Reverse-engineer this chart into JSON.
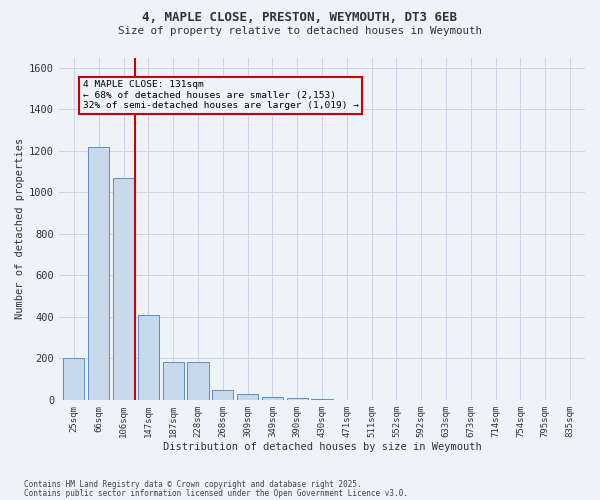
{
  "title_line1": "4, MAPLE CLOSE, PRESTON, WEYMOUTH, DT3 6EB",
  "title_line2": "Size of property relative to detached houses in Weymouth",
  "xlabel": "Distribution of detached houses by size in Weymouth",
  "ylabel": "Number of detached properties",
  "categories": [
    "25sqm",
    "66sqm",
    "106sqm",
    "147sqm",
    "187sqm",
    "228sqm",
    "268sqm",
    "309sqm",
    "349sqm",
    "390sqm",
    "430sqm",
    "471sqm",
    "511sqm",
    "552sqm",
    "592sqm",
    "633sqm",
    "673sqm",
    "714sqm",
    "754sqm",
    "795sqm",
    "835sqm"
  ],
  "values": [
    200,
    1220,
    1070,
    410,
    180,
    180,
    45,
    30,
    15,
    8,
    3,
    1,
    0,
    0,
    0,
    0,
    0,
    0,
    0,
    0,
    0
  ],
  "bar_color": "#c9d9ec",
  "bar_edge_color": "#5b8ec4",
  "grid_color": "#c8d4e8",
  "vline_color": "#cc0000",
  "vline_x": 2.45,
  "annotation_text": "4 MAPLE CLOSE: 131sqm\n← 68% of detached houses are smaller (2,153)\n32% of semi-detached houses are larger (1,019) →",
  "annotation_box_edgecolor": "#cc0000",
  "ylim": [
    0,
    1650
  ],
  "yticks": [
    0,
    200,
    400,
    600,
    800,
    1000,
    1200,
    1400,
    1600
  ],
  "footnote_line1": "Contains HM Land Registry data © Crown copyright and database right 2025.",
  "footnote_line2": "Contains public sector information licensed under the Open Government Licence v3.0.",
  "bg_color": "#eef2f9",
  "font_color": "#333333"
}
